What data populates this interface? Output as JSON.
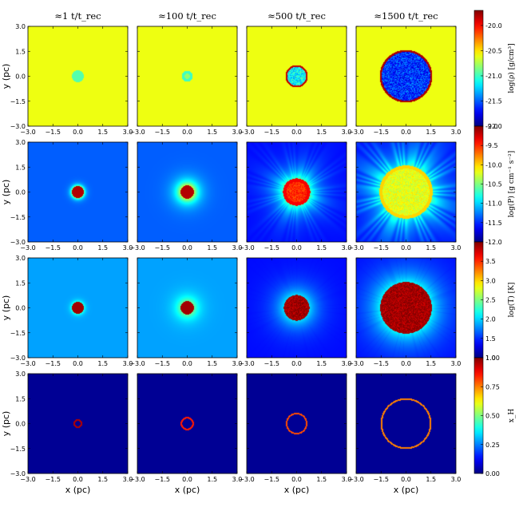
{
  "chart_data": {
    "type": "heatmap",
    "column_titles": [
      "≈1 t/t_rec",
      "≈100 t/t_rec",
      "≈500 t/t_rec",
      "≈1500 t/t_rec"
    ],
    "xlabel": "x (pc)",
    "ylabel": "y (pc)",
    "xlim": [
      -3.0,
      3.0
    ],
    "ylim": [
      -3.0,
      3.0
    ],
    "xticks": [
      "−3.0",
      "−1.5",
      "0.0",
      "1.5",
      "3.0"
    ],
    "yticks": [
      "−3.0",
      "−1.5",
      "0.0",
      "1.5",
      "3.0"
    ],
    "rows": [
      {
        "name": "density",
        "colorbar_label": "log(ρ) [g/cm³]",
        "vmin": -22.0,
        "vmax": -19.7,
        "colorbar_ticks": [
          "-22.0",
          "-21.5",
          "-21.0",
          "-20.5",
          "-20.0"
        ],
        "colorbar_tick_values": [
          -22.0,
          -21.5,
          -21.0,
          -20.5,
          -20.0
        ],
        "background": -20.6,
        "panels": [
          {
            "radius_pc": 0.25,
            "inner": -20.95,
            "rim": -20.95,
            "rim_width_pc": 0.1,
            "ray_amp": 0
          },
          {
            "radius_pc": 0.25,
            "inner": -20.8,
            "rim": -21.0,
            "rim_width_pc": 0.08,
            "ray_amp": 0
          },
          {
            "radius_pc": 0.62,
            "inner": -21.15,
            "rim": -19.85,
            "rim_width_pc": 0.05,
            "ray_amp": 0
          },
          {
            "radius_pc": 1.52,
            "inner": -21.6,
            "rim": -19.8,
            "rim_width_pc": 0.06,
            "ray_amp": 0
          }
        ]
      },
      {
        "name": "pressure",
        "colorbar_label": "log(P) [g cm⁻¹ s⁻²]",
        "vmin": -12.0,
        "vmax": -9.0,
        "colorbar_ticks": [
          "-12.0",
          "-11.5",
          "-11.0",
          "-10.5",
          "-10.0",
          "-9.5",
          "-9.0"
        ],
        "colorbar_tick_values": [
          -12.0,
          -11.5,
          -11.0,
          -10.5,
          -10.0,
          -9.5,
          -9.0
        ],
        "background": -11.35,
        "panels": [
          {
            "radius_pc": 0.3,
            "inner": -9.15,
            "rim": -9.15,
            "rim_width_pc": 0.05,
            "ray_amp": 0
          },
          {
            "radius_pc": 0.35,
            "inner": -9.15,
            "rim": -9.15,
            "rim_width_pc": 0.05,
            "ray_amp": 0
          },
          {
            "radius_pc": 0.72,
            "inner": -9.5,
            "rim": -9.35,
            "rim_width_pc": 0.1,
            "ray_amp": 0.15
          },
          {
            "radius_pc": 1.5,
            "inner": -10.2,
            "rim": -10.0,
            "rim_width_pc": 0.1,
            "ray_amp": 0.25
          }
        ]
      },
      {
        "name": "temperature",
        "colorbar_label": "log(T) [K]",
        "vmin": 1.0,
        "vmax": 4.0,
        "colorbar_ticks": [
          "1.0",
          "1.5",
          "2.0",
          "2.5",
          "3.0",
          "3.5"
        ],
        "colorbar_tick_values": [
          1.0,
          1.5,
          2.0,
          2.5,
          3.0,
          3.5
        ],
        "background": 1.85,
        "panels": [
          {
            "radius_pc": 0.3,
            "inner": 3.9,
            "rim": 3.9,
            "rim_width_pc": 0.05,
            "ray_amp": 0
          },
          {
            "radius_pc": 0.35,
            "inner": 3.9,
            "rim": 3.9,
            "rim_width_pc": 0.05,
            "ray_amp": 0
          },
          {
            "radius_pc": 0.72,
            "inner": 3.9,
            "rim": 3.9,
            "rim_width_pc": 0.05,
            "ray_amp": 0.15
          },
          {
            "radius_pc": 1.5,
            "inner": 3.9,
            "rim": 3.9,
            "rim_width_pc": 0.05,
            "ray_amp": 0.25
          }
        ]
      },
      {
        "name": "neutral-fraction",
        "colorbar_label": "x_H",
        "vmin": 0.0,
        "vmax": 1.0,
        "colorbar_ticks": [
          "0.00",
          "0.25",
          "0.50",
          "0.75",
          "1.00"
        ],
        "colorbar_tick_values": [
          0.0,
          0.25,
          0.5,
          0.75,
          1.0
        ],
        "background": 0.02,
        "panels": [
          {
            "radius_pc": 0.22,
            "inner": 0.02,
            "rim": 0.95,
            "rim_width_pc": 0.05,
            "ray_amp": 0
          },
          {
            "radius_pc": 0.35,
            "inner": 0.02,
            "rim": 0.85,
            "rim_width_pc": 0.05,
            "ray_amp": 0
          },
          {
            "radius_pc": 0.6,
            "inner": 0.02,
            "rim": 0.8,
            "rim_width_pc": 0.05,
            "ray_amp": 0
          },
          {
            "radius_pc": 1.48,
            "inner": 0.02,
            "rim": 0.75,
            "rim_width_pc": 0.05,
            "ray_amp": 0
          }
        ]
      }
    ],
    "colormap": "jet"
  }
}
